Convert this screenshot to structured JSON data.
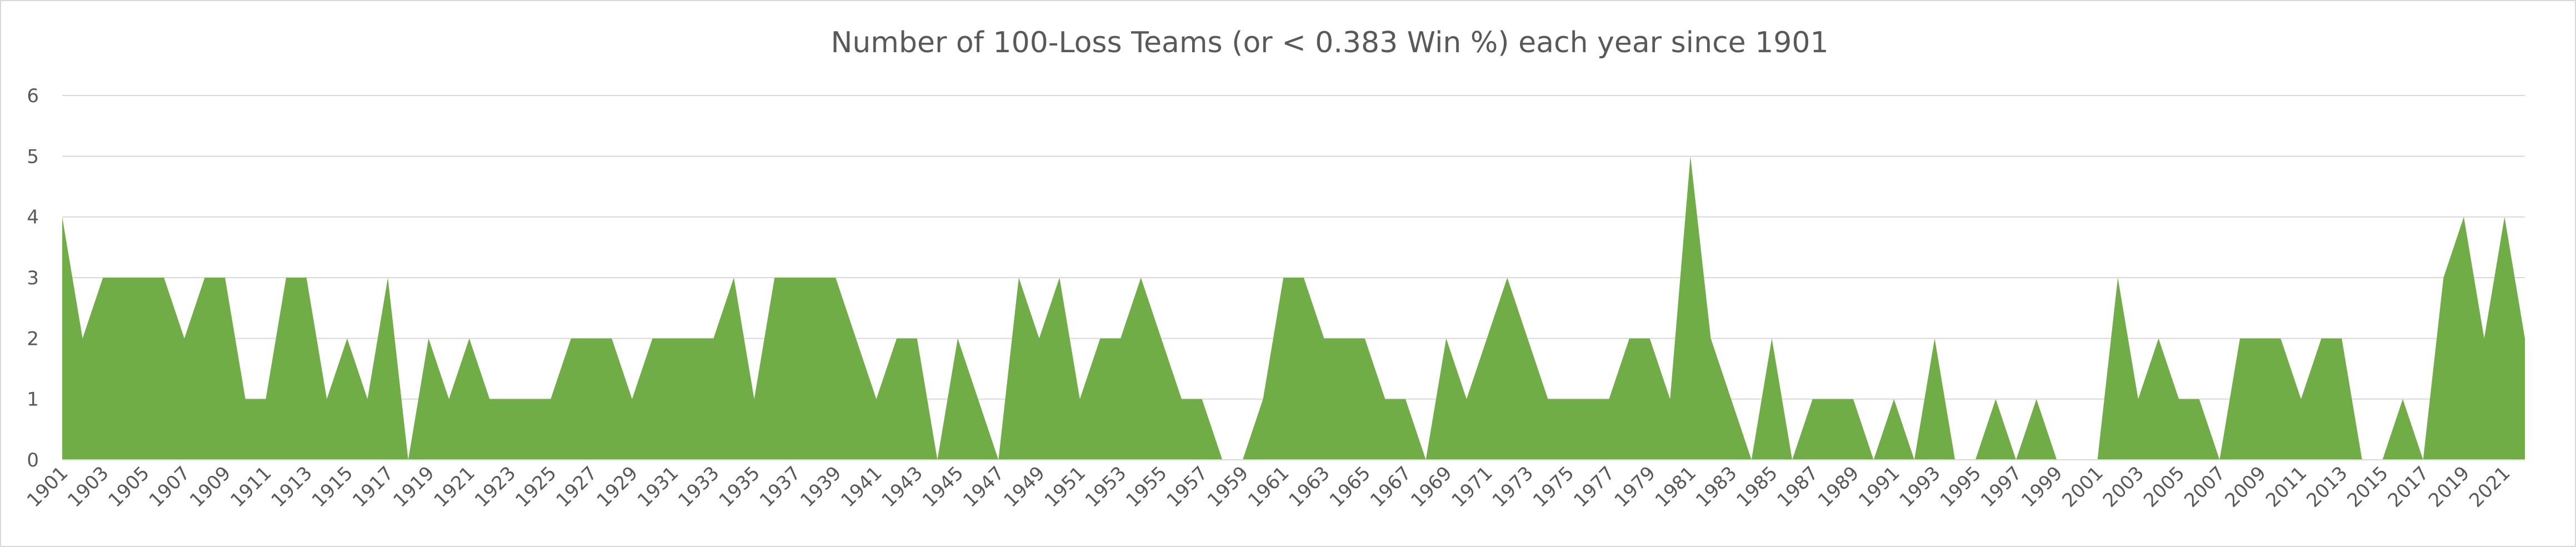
{
  "chart_data": {
    "type": "area",
    "title": "Number of 100-Loss Teams (or < 0.383 Win %) each year since 1901",
    "xlabel": "",
    "ylabel": "",
    "ylim": [
      0,
      6
    ],
    "yticks": [
      0,
      1,
      2,
      3,
      4,
      5,
      6
    ],
    "grid": true,
    "legend": "none",
    "color": "#70AD47",
    "x": [
      1901,
      1902,
      1903,
      1904,
      1905,
      1906,
      1907,
      1908,
      1909,
      1910,
      1911,
      1912,
      1913,
      1914,
      1915,
      1916,
      1917,
      1918,
      1919,
      1920,
      1921,
      1922,
      1923,
      1924,
      1925,
      1926,
      1927,
      1928,
      1929,
      1930,
      1931,
      1932,
      1933,
      1934,
      1935,
      1936,
      1937,
      1938,
      1939,
      1940,
      1941,
      1942,
      1943,
      1944,
      1945,
      1946,
      1947,
      1948,
      1949,
      1950,
      1951,
      1952,
      1953,
      1954,
      1955,
      1956,
      1957,
      1958,
      1959,
      1960,
      1961,
      1962,
      1963,
      1964,
      1965,
      1966,
      1967,
      1968,
      1969,
      1970,
      1971,
      1972,
      1973,
      1974,
      1975,
      1976,
      1977,
      1978,
      1979,
      1980,
      1981,
      1982,
      1983,
      1984,
      1985,
      1986,
      1987,
      1988,
      1989,
      1990,
      1991,
      1992,
      1993,
      1994,
      1995,
      1996,
      1997,
      1998,
      1999,
      2000,
      2001,
      2002,
      2003,
      2004,
      2005,
      2006,
      2007,
      2008,
      2009,
      2010,
      2011,
      2012,
      2013,
      2014,
      2015,
      2016,
      2017,
      2018,
      2019,
      2020,
      2021,
      2022
    ],
    "values": [
      4,
      2,
      3,
      3,
      3,
      3,
      2,
      3,
      3,
      1,
      1,
      3,
      3,
      1,
      2,
      1,
      3,
      0,
      2,
      1,
      2,
      1,
      1,
      1,
      1,
      2,
      2,
      2,
      1,
      2,
      2,
      2,
      2,
      3,
      1,
      3,
      3,
      3,
      3,
      2,
      1,
      2,
      2,
      0,
      2,
      1,
      0,
      3,
      2,
      3,
      1,
      2,
      2,
      3,
      2,
      1,
      1,
      0,
      0,
      1,
      3,
      3,
      2,
      2,
      2,
      1,
      1,
      0,
      2,
      1,
      2,
      3,
      2,
      1,
      1,
      1,
      1,
      2,
      2,
      1,
      5,
      2,
      1,
      0,
      2,
      0,
      1,
      1,
      1,
      0,
      1,
      0,
      2,
      0,
      0,
      1,
      0,
      1,
      0,
      0,
      0,
      3,
      1,
      2,
      1,
      1,
      0,
      2,
      2,
      2,
      1,
      2,
      2,
      0,
      0,
      1,
      0,
      3,
      4,
      2,
      4,
      2
    ],
    "tick_labels": [
      "1901",
      "1903",
      "1905",
      "1907",
      "1909",
      "1911",
      "1913",
      "1915",
      "1917",
      "1919",
      "1921",
      "1923",
      "1925",
      "1927",
      "1929",
      "1931",
      "1933",
      "1935",
      "1937",
      "1939",
      "1941",
      "1943",
      "1945",
      "1947",
      "1949",
      "1951",
      "1953",
      "1955",
      "1957",
      "1959",
      "1961",
      "1963",
      "1965",
      "1967",
      "1969",
      "1971",
      "1973",
      "1975",
      "1977",
      "1979",
      "1981",
      "1983",
      "1985",
      "1987",
      "1989",
      "1991",
      "1993",
      "1995",
      "1997",
      "1999",
      "2001",
      "2003",
      "2005",
      "2007",
      "2009",
      "2011",
      "2013",
      "2015",
      "2017",
      "2019",
      "2021"
    ]
  }
}
